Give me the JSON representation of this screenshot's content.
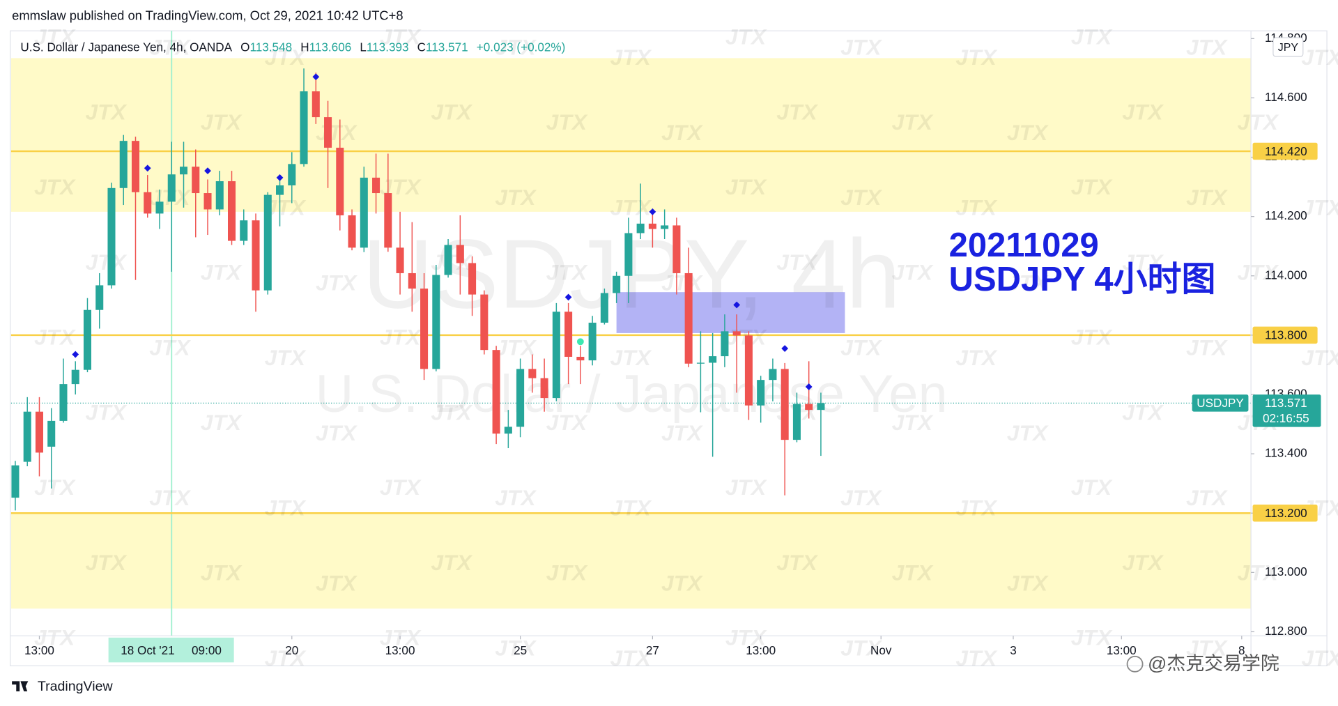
{
  "header": {
    "published": "emmslaw published on TradingView.com, Oct 29, 2021 10:42 UTC+8"
  },
  "chart_data": {
    "type": "candlestick",
    "symbol_title": "U.S. Dollar / Japanese Yen, 4h, OANDA",
    "ohlc_letters": [
      "O",
      "H",
      "L",
      "C"
    ],
    "change": "+0.023 (+0.02%)",
    "watermark_symbol": "USDJPY, 4h",
    "watermark_name": "U.S. Dollar / Japanese Yen",
    "watermark_logo": "JTX",
    "annotation": [
      "20211029",
      "USDJPY 4小时图"
    ],
    "currency": "JPY",
    "symbol": "USDJPY",
    "countdown": "02:16:55",
    "up_color": "#26a69a",
    "down_color": "#ef5350",
    "open": [
      113.252,
      113.373,
      113.542,
      113.424,
      113.511,
      113.635,
      113.683,
      113.885,
      113.968,
      114.296,
      114.455,
      114.282,
      114.21,
      114.25,
      114.342,
      114.368,
      114.279,
      114.224,
      114.319,
      114.118,
      114.187,
      113.951,
      114.273,
      114.305,
      114.377,
      114.622,
      114.535,
      114.432,
      114.204,
      114.095,
      114.331,
      114.279,
      114.095,
      114.009,
      113.957,
      113.686,
      114.003,
      114.104,
      114.043,
      113.937,
      113.75,
      113.468,
      113.491,
      113.686,
      113.655,
      113.588,
      113.879,
      113.727,
      113.715,
      113.842,
      113.942,
      114.0,
      114.144,
      114.176,
      114.158,
      114.17,
      114.009,
      113.704,
      113.707,
      113.729,
      113.813,
      113.799,
      113.563,
      113.649,
      113.686,
      113.447,
      113.568,
      113.548
    ],
    "high": [
      113.376,
      113.591,
      113.591,
      113.554,
      113.721,
      113.712,
      113.925,
      114.009,
      114.314,
      114.475,
      114.469,
      114.34,
      114.291,
      114.452,
      114.452,
      114.426,
      114.325,
      114.354,
      114.354,
      114.224,
      114.21,
      114.282,
      114.34,
      114.417,
      114.699,
      114.685,
      114.59,
      114.527,
      114.224,
      114.368,
      114.412,
      114.412,
      114.216,
      114.181,
      114.009,
      114.037,
      114.124,
      114.204,
      114.066,
      113.951,
      113.764,
      113.548,
      113.721,
      113.735,
      113.721,
      113.908,
      113.908,
      113.764,
      113.865,
      113.957,
      114.014,
      114.196,
      114.311,
      114.216,
      114.224,
      114.196,
      114.095,
      113.813,
      113.807,
      113.87,
      113.87,
      113.813,
      113.663,
      113.721,
      113.706,
      113.606,
      113.712,
      113.606
    ],
    "low": [
      113.209,
      113.358,
      113.324,
      113.283,
      113.505,
      113.6,
      113.675,
      113.822,
      113.957,
      114.239,
      113.986,
      114.196,
      114.158,
      114.014,
      114.23,
      114.13,
      114.138,
      114.204,
      114.104,
      114.104,
      113.879,
      113.937,
      114.167,
      114.245,
      114.368,
      114.512,
      114.296,
      114.153,
      114.086,
      114.08,
      114.21,
      114.081,
      113.937,
      113.879,
      113.649,
      113.678,
      113.994,
      113.937,
      113.865,
      113.735,
      113.433,
      113.419,
      113.456,
      113.606,
      113.542,
      113.577,
      113.635,
      113.635,
      113.698,
      113.836,
      113.908,
      113.908,
      114.124,
      114.095,
      114.124,
      113.937,
      113.692,
      113.54,
      113.39,
      113.692,
      113.606,
      113.514,
      113.505,
      113.577,
      113.26,
      113.439,
      113.519,
      113.393
    ],
    "close": [
      113.361,
      113.542,
      113.404,
      113.511,
      113.635,
      113.683,
      113.885,
      113.968,
      114.296,
      114.455,
      114.282,
      114.21,
      114.25,
      114.342,
      114.368,
      114.279,
      114.224,
      114.319,
      114.118,
      114.187,
      113.951,
      114.273,
      114.305,
      114.377,
      114.622,
      114.535,
      114.432,
      114.204,
      114.095,
      114.331,
      114.279,
      114.095,
      114.009,
      113.957,
      113.686,
      114.003,
      114.104,
      114.043,
      113.937,
      113.75,
      113.468,
      113.491,
      113.686,
      113.655,
      113.588,
      113.879,
      113.727,
      113.715,
      113.842,
      113.942,
      114.0,
      114.144,
      114.176,
      114.158,
      114.17,
      114.009,
      113.704,
      113.707,
      113.729,
      113.813,
      113.799,
      113.563,
      113.649,
      113.686,
      113.447,
      113.568,
      113.548,
      113.571
    ],
    "xlim": [
      -0.35,
      102.77
    ],
    "ylim": [
      112.786,
      114.826
    ],
    "yticks": [
      {
        "value": 112.8,
        "label": "112.800"
      },
      {
        "value": 113.0,
        "label": "113.000"
      },
      {
        "value": 113.2,
        "label": "113.200"
      },
      {
        "value": 113.4,
        "label": "113.400"
      },
      {
        "value": 113.6,
        "label": "113.600"
      },
      {
        "value": 113.8,
        "label": "113.800"
      },
      {
        "value": 114.0,
        "label": "114.000"
      },
      {
        "value": 114.2,
        "label": "114.200"
      },
      {
        "value": 114.4,
        "label": "114.400"
      },
      {
        "value": 114.6,
        "label": "114.600"
      },
      {
        "value": 114.8,
        "label": "114.800"
      }
    ],
    "xticks": [
      {
        "value": 2,
        "label": "13:00"
      },
      {
        "value": 23,
        "label": "20"
      },
      {
        "value": 32,
        "label": "13:00"
      },
      {
        "value": 42,
        "label": "25"
      },
      {
        "value": 53,
        "label": "27"
      },
      {
        "value": 62,
        "label": "13:00"
      },
      {
        "value": 72,
        "label": "Nov"
      },
      {
        "value": 83,
        "label": "3"
      },
      {
        "value": 92,
        "label": "13:00"
      },
      {
        "value": 102,
        "label": "8"
      }
    ],
    "crosshair": {
      "x": 13,
      "date": "18 Oct '21",
      "time": "09:00"
    },
    "zones": [
      [
        114.734,
        114.216
      ],
      [
        113.2,
        112.878
      ]
    ],
    "zone_color": "#fffac8",
    "levels": [
      {
        "value": 114.42,
        "label": "114.420"
      },
      {
        "value": 113.8,
        "label": "113.800"
      },
      {
        "value": 113.2,
        "label": "113.200"
      }
    ],
    "level_color": "#f9d046",
    "box": {
      "x": [
        50,
        69
      ],
      "y": [
        113.945,
        113.807
      ],
      "color": "#b3b3f5"
    },
    "markers": [
      {
        "x": 5,
        "y": 113.735
      },
      {
        "x": 11,
        "y": 114.363
      },
      {
        "x": 16,
        "y": 114.354
      },
      {
        "x": 22,
        "y": 114.331
      },
      {
        "x": 25,
        "y": 114.671
      },
      {
        "x": 46,
        "y": 113.928
      },
      {
        "x": 53,
        "y": 114.216
      },
      {
        "x": 60,
        "y": 113.902
      },
      {
        "x": 64,
        "y": 113.755
      },
      {
        "x": 66,
        "y": 113.626
      }
    ],
    "marker_color": "#1515e0",
    "signal": {
      "x": 47,
      "y": 113.778,
      "color": "#3ce8b0"
    }
  },
  "footer": {
    "brand": "TradingView",
    "credit": "@杰克交易学院"
  }
}
